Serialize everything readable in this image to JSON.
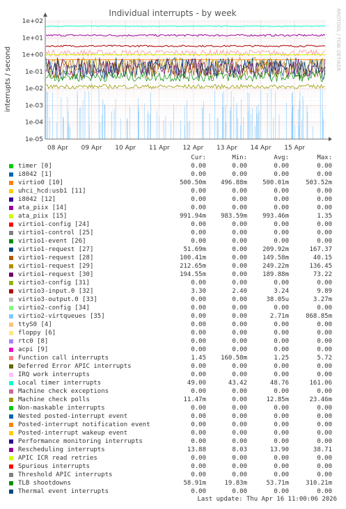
{
  "chart_data": {
    "type": "line",
    "title": "Individual interrupts - by week",
    "ylabel": "interrupts / second",
    "y_scale": "log",
    "ylim": [
      1e-05,
      100
    ],
    "y_ticks": [
      "1e+02",
      "1e+01",
      "1e+00",
      "1e-01",
      "1e-02",
      "1e-03",
      "1e-04",
      "1e-05"
    ],
    "x_ticks": [
      "08 Apr",
      "09 Apr",
      "10 Apr",
      "11 Apr",
      "12 Apr",
      "13 Apr",
      "14 Apr",
      "15 Apr"
    ],
    "grid": true,
    "series": [
      {
        "name": "timer [0]",
        "color": "#00cc00",
        "cur": "0.00",
        "min": "0.00",
        "avg": "0.00",
        "max": "0.00"
      },
      {
        "name": "i8042 [1]",
        "color": "#0066b3",
        "cur": "0.00",
        "min": "0.00",
        "avg": "0.00",
        "max": "0.00"
      },
      {
        "name": "virtio0 [10]",
        "color": "#ff8000",
        "cur": "500.50m",
        "min": "496.88m",
        "avg": "500.01m",
        "max": "503.52m"
      },
      {
        "name": "uhci_hcd:usb1 [11]",
        "color": "#ffcc00",
        "cur": "0.00",
        "min": "0.00",
        "avg": "0.00",
        "max": "0.00"
      },
      {
        "name": "i8042 [12]",
        "color": "#330099",
        "cur": "0.00",
        "min": "0.00",
        "avg": "0.00",
        "max": "0.00"
      },
      {
        "name": "ata_piix [14]",
        "color": "#990099",
        "cur": "0.00",
        "min": "0.00",
        "avg": "0.00",
        "max": "0.00"
      },
      {
        "name": "ata_piix [15]",
        "color": "#ccff00",
        "cur": "991.94m",
        "min": "983.59m",
        "avg": "993.46m",
        "max": "1.35"
      },
      {
        "name": "virtio1-config [24]",
        "color": "#ff0000",
        "cur": "0.00",
        "min": "0.00",
        "avg": "0.00",
        "max": "0.00"
      },
      {
        "name": "virtio1-control [25]",
        "color": "#808080",
        "cur": "0.00",
        "min": "0.00",
        "avg": "0.00",
        "max": "0.00"
      },
      {
        "name": "virtio1-event [26]",
        "color": "#008f00",
        "cur": "0.00",
        "min": "0.00",
        "avg": "0.00",
        "max": "0.00"
      },
      {
        "name": "virtio1-request [27]",
        "color": "#00487d",
        "cur": "51.69m",
        "min": "0.00",
        "avg": "209.92m",
        "max": "167.37"
      },
      {
        "name": "virtio1-request [28]",
        "color": "#b35a00",
        "cur": "100.41m",
        "min": "0.00",
        "avg": "149.58m",
        "max": "40.15"
      },
      {
        "name": "virtio1-request [29]",
        "color": "#b38f00",
        "cur": "212.65m",
        "min": "0.00",
        "avg": "249.22m",
        "max": "136.45"
      },
      {
        "name": "virtio1-request [30]",
        "color": "#6b006b",
        "cur": "194.55m",
        "min": "0.00",
        "avg": "189.88m",
        "max": "73.22"
      },
      {
        "name": "virtio3-config [31]",
        "color": "#8fb300",
        "cur": "0.00",
        "min": "0.00",
        "avg": "0.00",
        "max": "0.00"
      },
      {
        "name": "virtio3-input.0 [32]",
        "color": "#b30000",
        "cur": "3.30",
        "min": "2.40",
        "avg": "3.24",
        "max": "9.89"
      },
      {
        "name": "virtio3-output.0 [33]",
        "color": "#bebebe",
        "cur": "0.00",
        "min": "0.00",
        "avg": "38.05u",
        "max": "3.27m"
      },
      {
        "name": "virtio2-config [34]",
        "color": "#80ff80",
        "cur": "0.00",
        "min": "0.00",
        "avg": "0.00",
        "max": "0.00"
      },
      {
        "name": "virtio2-virtqueues [35]",
        "color": "#80c9ff",
        "cur": "0.00",
        "min": "0.00",
        "avg": "2.71m",
        "max": "868.85m"
      },
      {
        "name": "ttyS0 [4]",
        "color": "#ffc080",
        "cur": "0.00",
        "min": "0.00",
        "avg": "0.00",
        "max": "0.00"
      },
      {
        "name": "floppy [6]",
        "color": "#ffe680",
        "cur": "0.00",
        "min": "0.00",
        "avg": "0.00",
        "max": "0.00"
      },
      {
        "name": "rtc0 [8]",
        "color": "#aa80ff",
        "cur": "0.00",
        "min": "0.00",
        "avg": "0.00",
        "max": "0.00"
      },
      {
        "name": "acpi [9]",
        "color": "#ee00cc",
        "cur": "0.00",
        "min": "0.00",
        "avg": "0.00",
        "max": "0.00"
      },
      {
        "name": "Function call interrupts",
        "color": "#ff8080",
        "cur": "1.45",
        "min": "160.58m",
        "avg": "1.25",
        "max": "5.72"
      },
      {
        "name": "Deferred Error APIC interrupts",
        "color": "#666600",
        "cur": "0.00",
        "min": "0.00",
        "avg": "0.00",
        "max": "0.00"
      },
      {
        "name": "IRQ work interrupts",
        "color": "#ffbfff",
        "cur": "0.00",
        "min": "0.00",
        "avg": "0.00",
        "max": "0.00"
      },
      {
        "name": "Local timer interrupts",
        "color": "#00ffcc",
        "cur": "49.00",
        "min": "43.42",
        "avg": "48.76",
        "max": "161.06"
      },
      {
        "name": "Machine check exceptions",
        "color": "#cc6699",
        "cur": "0.00",
        "min": "0.00",
        "avg": "0.00",
        "max": "0.00"
      },
      {
        "name": "Machine check polls",
        "color": "#999900",
        "cur": "11.47m",
        "min": "0.00",
        "avg": "12.85m",
        "max": "23.46m"
      },
      {
        "name": "Non-maskable interrupts",
        "color": "#00cc00",
        "cur": "0.00",
        "min": "0.00",
        "avg": "0.00",
        "max": "0.00"
      },
      {
        "name": "Nested posted-interrupt event",
        "color": "#0066b3",
        "cur": "0.00",
        "min": "0.00",
        "avg": "0.00",
        "max": "0.00"
      },
      {
        "name": "Posted-interrupt notification event",
        "color": "#ff8000",
        "cur": "0.00",
        "min": "0.00",
        "avg": "0.00",
        "max": "0.00"
      },
      {
        "name": "Posted-interrupt wakeup event",
        "color": "#ffcc00",
        "cur": "0.00",
        "min": "0.00",
        "avg": "0.00",
        "max": "0.00"
      },
      {
        "name": "Performance monitoring interrupts",
        "color": "#330099",
        "cur": "0.00",
        "min": "0.00",
        "avg": "0.00",
        "max": "0.00"
      },
      {
        "name": "Rescheduling interrupts",
        "color": "#990099",
        "cur": "13.88",
        "min": "8.03",
        "avg": "13.90",
        "max": "38.71"
      },
      {
        "name": "APIC ICR read retries",
        "color": "#ccff00",
        "cur": "0.00",
        "min": "0.00",
        "avg": "0.00",
        "max": "0.00"
      },
      {
        "name": "Spurious interrupts",
        "color": "#ff0000",
        "cur": "0.00",
        "min": "0.00",
        "avg": "0.00",
        "max": "0.00"
      },
      {
        "name": "Threshold APIC interrupts",
        "color": "#808080",
        "cur": "0.00",
        "min": "0.00",
        "avg": "0.00",
        "max": "0.00"
      },
      {
        "name": "TLB shootdowns",
        "color": "#008f00",
        "cur": "58.91m",
        "min": "19.83m",
        "avg": "53.71m",
        "max": "310.21m"
      },
      {
        "name": "Thermal event interrupts",
        "color": "#00487d",
        "cur": "0.00",
        "min": "0.00",
        "avg": "0.00",
        "max": "0.00"
      }
    ]
  },
  "legend_headers": {
    "cur": "Cur:",
    "min": "Min:",
    "avg": "Avg:",
    "max": "Max:"
  },
  "side_label": "RRDTOOL / TOBI OETIKER",
  "footer": "Last update: Thu Apr 16 11:00:06 2026"
}
